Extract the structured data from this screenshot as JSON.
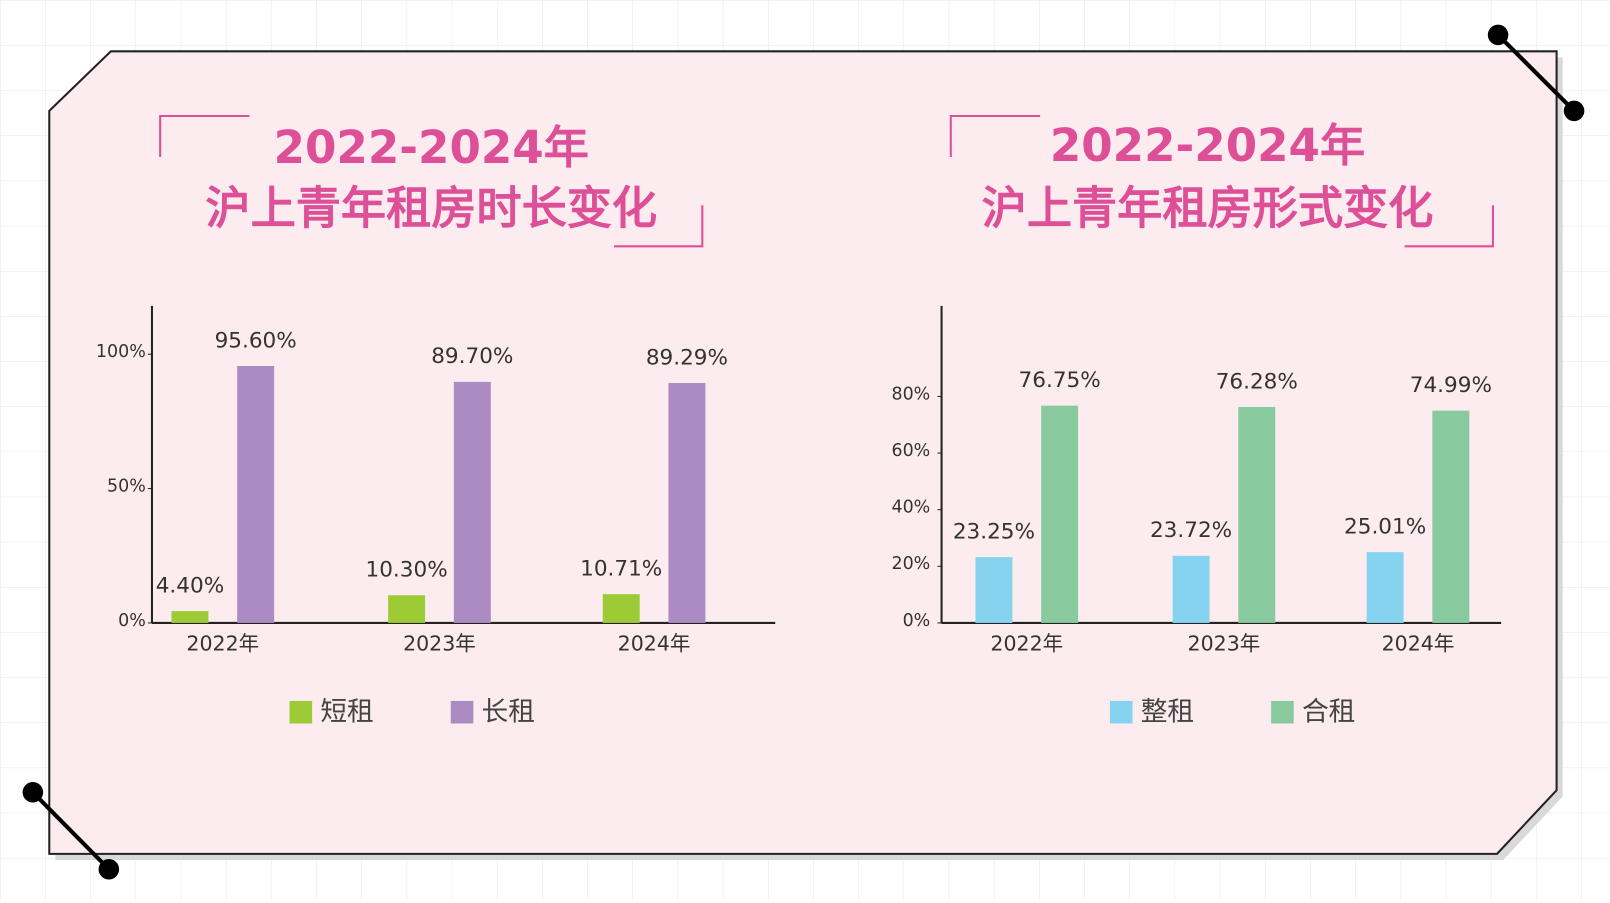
{
  "chart_data": [
    {
      "type": "bar",
      "title": "2022-2024年",
      "subtitle": "沪上青年租房时长变化",
      "categories": [
        "2022年",
        "2023年",
        "2024年"
      ],
      "series": [
        {
          "name": "短租",
          "color": "#9dcb35",
          "values": [
            4.4,
            10.3,
            10.71
          ],
          "value_labels": [
            "4.40%",
            "10.30%",
            "10.71%"
          ]
        },
        {
          "name": "长租",
          "color": "#ab8bc2",
          "values": [
            95.6,
            89.7,
            89.29
          ],
          "value_labels": [
            "95.60%",
            "89.70%",
            "89.29%"
          ]
        }
      ],
      "ylim": [
        0,
        118
      ],
      "yticks": [
        {
          "value": 0,
          "label": "0%"
        },
        {
          "value": 50,
          "label": "50%"
        },
        {
          "value": 100,
          "label": "100%"
        }
      ]
    },
    {
      "type": "bar",
      "title": "2022-2024年",
      "subtitle": "沪上青年租房形式变化",
      "categories": [
        "2022年",
        "2023年",
        "2024年"
      ],
      "series": [
        {
          "name": "整租",
          "color": "#86d3f0",
          "values": [
            23.25,
            23.72,
            25.01
          ],
          "value_labels": [
            "23.25%",
            "23.72%",
            "25.01%"
          ]
        },
        {
          "name": "合租",
          "color": "#88c99e",
          "values": [
            76.75,
            76.28,
            74.99
          ],
          "value_labels": [
            "76.75%",
            "76.28%",
            "74.99%"
          ]
        }
      ],
      "ylim": [
        0,
        112
      ],
      "yticks": [
        {
          "value": 0,
          "label": "0%"
        },
        {
          "value": 20,
          "label": "20%"
        },
        {
          "value": 40,
          "label": "40%"
        },
        {
          "value": 60,
          "label": "60%"
        },
        {
          "value": 80,
          "label": "80%"
        }
      ]
    }
  ]
}
